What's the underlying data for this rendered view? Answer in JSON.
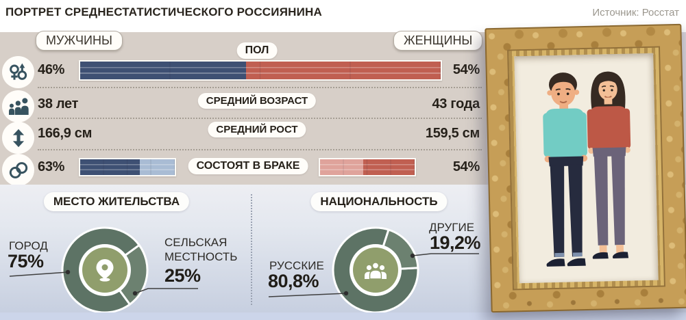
{
  "header": {
    "title": "ПОРТРЕТ СРЕДНЕСТАТИСТИЧЕСКОГО РОССИЯНИНА",
    "source": "Источник: Росстат"
  },
  "gender_header": {
    "men": "МУЖЧИНЫ",
    "women": "ЖЕНЩИНЫ"
  },
  "rows": [
    {
      "icon": "gender-icon",
      "label": "ПОЛ",
      "men": "46%",
      "women": "54%"
    },
    {
      "icon": "family-icon",
      "label": "СРЕДНИЙ ВОЗРАСТ",
      "men": "38 лет",
      "women": "43 года"
    },
    {
      "icon": "height-icon",
      "label": "СРЕДНИЙ РОСТ",
      "men": "166,9 см",
      "women": "159,5 см"
    },
    {
      "icon": "rings-icon",
      "label": "СОСТОЯТ В БРАКЕ",
      "men": "63%",
      "women": "54%"
    }
  ],
  "residence": {
    "title": "МЕСТО ЖИТЕЛЬСТВА",
    "icon": "location-pin-icon",
    "labels": {
      "city": "ГОРОД",
      "rural_line1": "СЕЛЬСКАЯ",
      "rural_line2": "МЕСТНОСТЬ"
    },
    "values": {
      "city": "75%",
      "rural": "25%"
    }
  },
  "nationality": {
    "title": "НАЦИОНАЛЬНОСТЬ",
    "icon": "people-group-icon",
    "labels": {
      "russians": "РУССКИЕ",
      "others": "ДРУГИЕ"
    },
    "values": {
      "russians": "80,8%",
      "others": "19,2%"
    }
  },
  "colors": {
    "men": "#3e5073",
    "men_light": "#a9bcd4",
    "women": "#c05f51",
    "women_light": "#dfa39b",
    "donut_main": "#5d7365",
    "donut_alt": "#6c8170",
    "donut_center": "#909e6c",
    "panel_bg": "#d7cfc8",
    "wall_bg": "#d8d4da"
  },
  "chart_data": [
    {
      "type": "bar",
      "title": "ПОЛ",
      "unit": "%",
      "series": [
        {
          "name": "МУЖЧИНЫ",
          "value": 46
        },
        {
          "name": "ЖЕНЩИНЫ",
          "value": 54
        }
      ]
    },
    {
      "type": "bar",
      "title": "СОСТОЯТ В БРАКЕ",
      "unit": "%",
      "series": [
        {
          "name": "МУЖЧИНЫ",
          "value": 63
        },
        {
          "name": "ЖЕНЩИНЫ",
          "value": 54
        }
      ]
    },
    {
      "type": "pie",
      "title": "МЕСТО ЖИТЕЛЬСТВА",
      "donut": true,
      "labels": [
        "ГОРОД",
        "СЕЛЬСКАЯ МЕСТНОСТЬ"
      ],
      "values": [
        75,
        25
      ],
      "display_values": [
        "75%",
        "25%"
      ],
      "colors": [
        "#5d7365",
        "#6c8170"
      ],
      "start_deg": 144
    },
    {
      "type": "pie",
      "title": "НАЦИОНАЛЬНОСТЬ",
      "donut": true,
      "labels": [
        "РУССКИЕ",
        "ДРУГИЕ"
      ],
      "values": [
        80.8,
        19.2
      ],
      "display_values": [
        "80,8%",
        "19,2%"
      ],
      "colors": [
        "#5d7365",
        "#6c8170"
      ],
      "start_deg": 87
    }
  ]
}
